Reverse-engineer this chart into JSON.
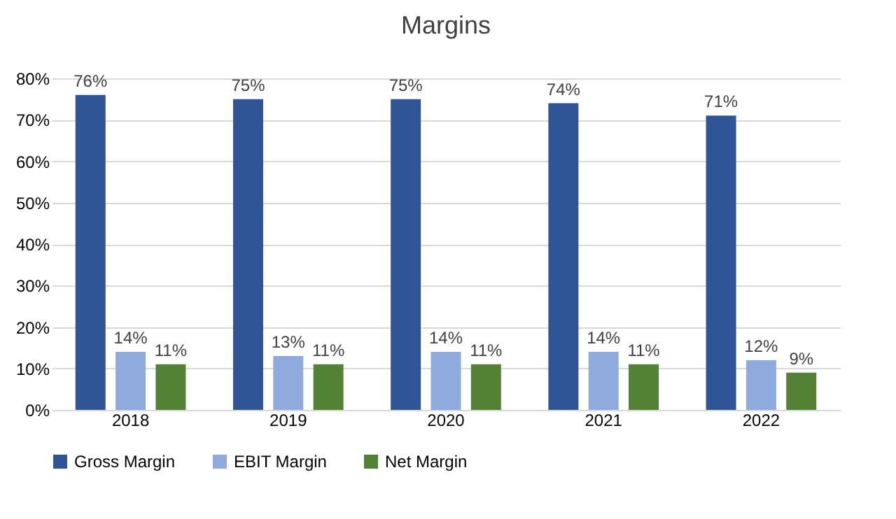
{
  "chart_data": {
    "type": "bar",
    "title": "Margins",
    "categories": [
      "2018",
      "2019",
      "2020",
      "2021",
      "2022"
    ],
    "series": [
      {
        "name": "Gross Margin",
        "color": "#2f5597",
        "values": [
          76,
          75,
          75,
          74,
          71
        ],
        "value_labels": [
          "76%",
          "75%",
          "75%",
          "74%",
          "71%"
        ]
      },
      {
        "name": "EBIT Margin",
        "color": "#8faadc",
        "values": [
          14,
          13,
          14,
          14,
          12
        ],
        "value_labels": [
          "14%",
          "13%",
          "14%",
          "14%",
          "12%"
        ]
      },
      {
        "name": "Net Margin",
        "color": "#548235",
        "values": [
          11,
          11,
          11,
          11,
          9
        ],
        "value_labels": [
          "11%",
          "11%",
          "11%",
          "11%",
          "9%"
        ]
      }
    ],
    "ylim": [
      0,
      80
    ],
    "yticks": [
      {
        "value": 0,
        "label": "0%"
      },
      {
        "value": 10,
        "label": "10%"
      },
      {
        "value": 20,
        "label": "20%"
      },
      {
        "value": 30,
        "label": "30%"
      },
      {
        "value": 40,
        "label": "40%"
      },
      {
        "value": 50,
        "label": "50%"
      },
      {
        "value": 60,
        "label": "60%"
      },
      {
        "value": 70,
        "label": "70%"
      },
      {
        "value": 80,
        "label": "80%"
      }
    ],
    "grid": "y",
    "legend": "bottom"
  }
}
